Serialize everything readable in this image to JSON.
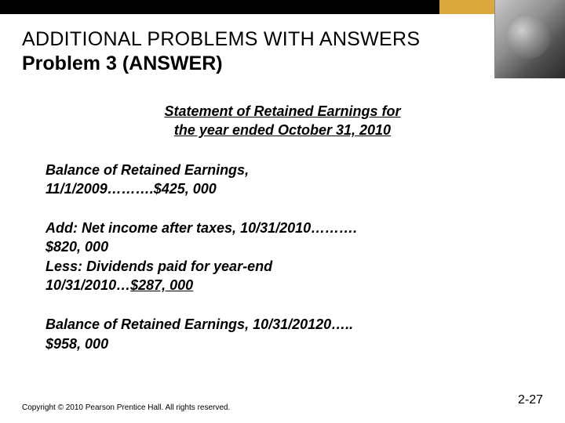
{
  "colors": {
    "topbar": "#000000",
    "gold": "#d9a93e",
    "background": "#ffffff",
    "text": "#000000"
  },
  "title": {
    "line1": "ADDITIONAL PROBLEMS WITH ANSWERS",
    "line2": "Problem 3  (ANSWER)"
  },
  "statement_header": {
    "line1": "Statement of Retained Earnings for",
    "line2": " the year ended October 31, 2010"
  },
  "block1": {
    "line1": "Balance of Retained Earnings,",
    "line2": "11/1/2009……….$425, 000"
  },
  "block2": {
    "line1": "Add: Net income after taxes, 10/31/2010……….",
    "line2": "$820, 000",
    "line3": "Less: Dividends paid for year-end",
    "line4_a": "10/31/2010…",
    "line4_b": "$287, 000"
  },
  "block3": {
    "line1": "Balance of Retained Earnings, 10/31/20120…..",
    "line2": "$958, 000"
  },
  "footer": {
    "copyright": "Copyright © 2010 Pearson Prentice Hall. All rights reserved.",
    "page": "2-27"
  }
}
